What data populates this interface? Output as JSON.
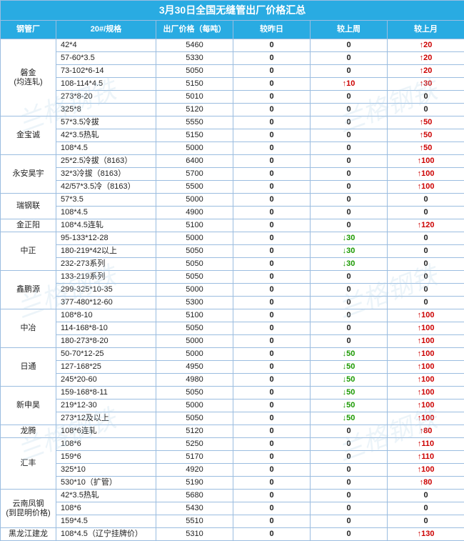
{
  "title": "3月30日全国无缝管出厂价格汇总",
  "columns": [
    "钢管厂",
    "20#/规格",
    "出厂价格（每吨）",
    "较昨日",
    "较上周",
    "较上月"
  ],
  "style": {
    "header_bg": "#29abe2",
    "header_fg": "#ffffff",
    "border_color": "#9bbde0",
    "row_bg": "#ffffff",
    "up_color": "#cc0000",
    "down_color": "#1a9900",
    "text_color": "#222222",
    "title_fontsize": 14,
    "body_fontsize": 11
  },
  "groups": [
    {
      "factory": "磐金\n(均连轧)",
      "rows": [
        {
          "spec": "42*4",
          "price": "5460",
          "d": "0",
          "w": "0",
          "m": "↑20"
        },
        {
          "spec": "57-60*3.5",
          "price": "5330",
          "d": "0",
          "w": "0",
          "m": "↑20"
        },
        {
          "spec": "73-102*6-14",
          "price": "5050",
          "d": "0",
          "w": "0",
          "m": "↑20"
        },
        {
          "spec": "108-114*4.5",
          "price": "5150",
          "d": "0",
          "w": "↑10",
          "m": "↑30"
        },
        {
          "spec": "273*8-20",
          "price": "5010",
          "d": "0",
          "w": "0",
          "m": "0"
        },
        {
          "spec": "325*8",
          "price": "5120",
          "d": "0",
          "w": "0",
          "m": "0"
        }
      ]
    },
    {
      "factory": "金宝诚",
      "rows": [
        {
          "spec": "57*3.5冷拔",
          "price": "5550",
          "d": "0",
          "w": "0",
          "m": "↑50"
        },
        {
          "spec": "42*3.5热轧",
          "price": "5150",
          "d": "0",
          "w": "0",
          "m": "↑50"
        },
        {
          "spec": "108*4.5",
          "price": "5000",
          "d": "0",
          "w": "0",
          "m": "↑50"
        }
      ]
    },
    {
      "factory": "永安昊宇",
      "rows": [
        {
          "spec": "25*2.5冷拔（8163）",
          "price": "6400",
          "d": "0",
          "w": "0",
          "m": "↑100"
        },
        {
          "spec": "32*3冷拔（8163）",
          "price": "5700",
          "d": "0",
          "w": "0",
          "m": "↑100"
        },
        {
          "spec": "42/57*3.5冷（8163）",
          "price": "5500",
          "d": "0",
          "w": "0",
          "m": "↑100"
        }
      ]
    },
    {
      "factory": "瑞钢联",
      "rows": [
        {
          "spec": "57*3.5",
          "price": "5000",
          "d": "0",
          "w": "0",
          "m": "0"
        },
        {
          "spec": "108*4.5",
          "price": "4900",
          "d": "0",
          "w": "0",
          "m": "0"
        }
      ]
    },
    {
      "factory": "金正阳",
      "rows": [
        {
          "spec": "108*4.5连轧",
          "price": "5100",
          "d": "0",
          "w": "0",
          "m": "↑120"
        }
      ]
    },
    {
      "factory": "中正",
      "rows": [
        {
          "spec": "95-133*12-28",
          "price": "5000",
          "d": "0",
          "w": "↓30",
          "m": "0"
        },
        {
          "spec": "180-219*42以上",
          "price": "5050",
          "d": "0",
          "w": "↓30",
          "m": "0"
        },
        {
          "spec": "232-273系列",
          "price": "5050",
          "d": "0",
          "w": "↓30",
          "m": "0"
        }
      ]
    },
    {
      "factory": "鑫鹏源",
      "rows": [
        {
          "spec": "133-219系列",
          "price": "5050",
          "d": "0",
          "w": "0",
          "m": "0"
        },
        {
          "spec": "299-325*10-35",
          "price": "5000",
          "d": "0",
          "w": "0",
          "m": "0"
        },
        {
          "spec": "377-480*12-60",
          "price": "5300",
          "d": "0",
          "w": "0",
          "m": "0"
        }
      ]
    },
    {
      "factory": "中冶",
      "rows": [
        {
          "spec": "108*8-10",
          "price": "5100",
          "d": "0",
          "w": "0",
          "m": "↑100"
        },
        {
          "spec": "114-168*8-10",
          "price": "5050",
          "d": "0",
          "w": "0",
          "m": "↑100"
        },
        {
          "spec": "180-273*8-20",
          "price": "5000",
          "d": "0",
          "w": "0",
          "m": "↑100"
        }
      ]
    },
    {
      "factory": "日通",
      "rows": [
        {
          "spec": "50-70*12-25",
          "price": "5000",
          "d": "0",
          "w": "↓50",
          "m": "↑100"
        },
        {
          "spec": "127-168*25",
          "price": "4950",
          "d": "0",
          "w": "↓50",
          "m": "↑100"
        },
        {
          "spec": "245*20-60",
          "price": "4980",
          "d": "0",
          "w": "↓50",
          "m": "↑100"
        }
      ]
    },
    {
      "factory": "新申昊",
      "rows": [
        {
          "spec": "159-168*8-11",
          "price": "5050",
          "d": "0",
          "w": "↓50",
          "m": "↑100"
        },
        {
          "spec": "219*12-30",
          "price": "5000",
          "d": "0",
          "w": "↓50",
          "m": "↑100"
        },
        {
          "spec": "273*12及以上",
          "price": "5050",
          "d": "0",
          "w": "↓50",
          "m": "↑100"
        }
      ]
    },
    {
      "factory": "龙腾",
      "rows": [
        {
          "spec": "108*6连轧",
          "price": "5120",
          "d": "0",
          "w": "0",
          "m": "↑80"
        }
      ]
    },
    {
      "factory": "汇丰",
      "rows": [
        {
          "spec": "108*6",
          "price": "5250",
          "d": "0",
          "w": "0",
          "m": "↑110"
        },
        {
          "spec": "159*6",
          "price": "5170",
          "d": "0",
          "w": "0",
          "m": "↑110"
        },
        {
          "spec": "325*10",
          "price": "4920",
          "d": "0",
          "w": "0",
          "m": "↑100"
        },
        {
          "spec": "530*10（扩管）",
          "price": "5190",
          "d": "0",
          "w": "0",
          "m": "↑80"
        }
      ]
    },
    {
      "factory": "云南凤钢\n(到昆明价格)",
      "rows": [
        {
          "spec": "42*3.5热轧",
          "price": "5680",
          "d": "0",
          "w": "0",
          "m": "0"
        },
        {
          "spec": "108*6",
          "price": "5430",
          "d": "0",
          "w": "0",
          "m": "0"
        },
        {
          "spec": "159*4.5",
          "price": "5510",
          "d": "0",
          "w": "0",
          "m": "0"
        }
      ]
    },
    {
      "factory": "黑龙江建龙",
      "rows": [
        {
          "spec": "108*4.5（辽宁挂牌价）",
          "price": "5310",
          "d": "0",
          "w": "0",
          "m": "↑130"
        }
      ]
    }
  ]
}
